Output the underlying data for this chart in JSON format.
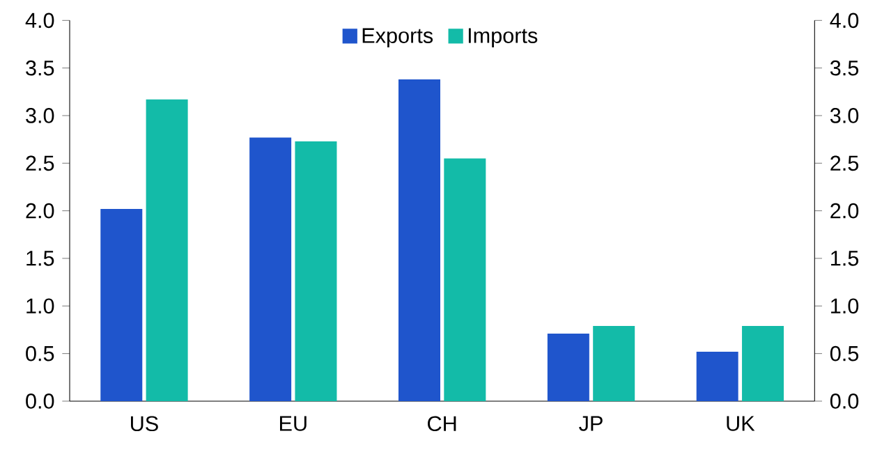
{
  "chart_data": {
    "type": "bar",
    "categories": [
      "US",
      "EU",
      "CH",
      "JP",
      "UK"
    ],
    "series": [
      {
        "name": "Exports",
        "color": "#1f55cc",
        "values": [
          2.02,
          2.77,
          3.38,
          0.71,
          0.52
        ]
      },
      {
        "name": "Imports",
        "color": "#13bba8",
        "values": [
          3.17,
          2.73,
          2.55,
          0.79,
          0.79
        ]
      }
    ],
    "ylim": [
      0,
      4
    ],
    "yticks": [
      {
        "value": 0,
        "label": "0.0"
      },
      {
        "value": 0.5,
        "label": "0.5"
      },
      {
        "value": 1,
        "label": "1.0"
      },
      {
        "value": 1.5,
        "label": "1.5"
      },
      {
        "value": 2,
        "label": "2.0"
      },
      {
        "value": 2.5,
        "label": "2.5"
      },
      {
        "value": 3,
        "label": "3.0"
      },
      {
        "value": 3.5,
        "label": "3.5"
      },
      {
        "value": 4,
        "label": "4.0"
      }
    ],
    "y2lim": [
      0,
      4
    ],
    "y2ticks": [
      {
        "value": 0,
        "label": "0.0"
      },
      {
        "value": 0.5,
        "label": "0.5"
      },
      {
        "value": 1,
        "label": "1.0"
      },
      {
        "value": 1.5,
        "label": "1.5"
      },
      {
        "value": 2,
        "label": "2.0"
      },
      {
        "value": 2.5,
        "label": "2.5"
      },
      {
        "value": 3,
        "label": "3.0"
      },
      {
        "value": 3.5,
        "label": "3.5"
      },
      {
        "value": 4,
        "label": "4.0"
      }
    ],
    "grid": false,
    "legend": "top"
  }
}
